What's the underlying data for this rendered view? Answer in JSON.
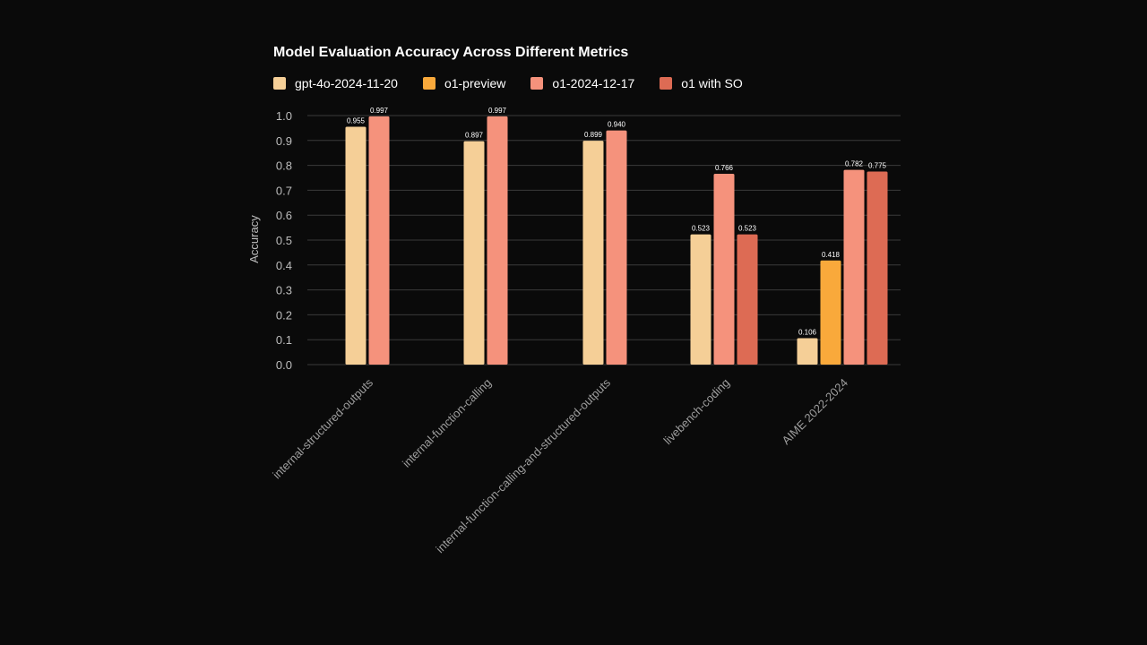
{
  "chart_data": {
    "type": "bar",
    "title": "Model Evaluation Accuracy Across Different Metrics",
    "xlabel": "",
    "ylabel": "Accuracy",
    "ylim": [
      0,
      1.0
    ],
    "yticks": [
      "0.0",
      "0.1",
      "0.2",
      "0.3",
      "0.4",
      "0.5",
      "0.6",
      "0.7",
      "0.8",
      "0.9",
      "1.0"
    ],
    "grid": true,
    "legend_position": "top-left",
    "categories": [
      "internal-structured-outputs",
      "internal-function-calling",
      "internal-function-calling-and-structured-outputs",
      "livebench-coding",
      "AIME 2022-2024"
    ],
    "series": [
      {
        "name": "gpt-4o-2024-11-20",
        "color": "#f5cf97",
        "values": [
          0.955,
          0.897,
          0.899,
          0.523,
          0.106
        ],
        "labels": [
          "0.955",
          "0.897",
          "0.899",
          "0.523",
          "0.106"
        ]
      },
      {
        "name": "o1-preview",
        "color": "#f9a93b",
        "values": [
          null,
          null,
          null,
          null,
          0.418
        ],
        "labels": [
          null,
          null,
          null,
          null,
          "0.418"
        ]
      },
      {
        "name": "o1-2024-12-17",
        "color": "#f5927c",
        "values": [
          0.997,
          0.997,
          0.94,
          0.766,
          0.782
        ],
        "labels": [
          "0.997",
          "0.997",
          "0.940",
          "0.766",
          "0.782"
        ]
      },
      {
        "name": "o1 with SO",
        "color": "#dd6b54",
        "values": [
          null,
          null,
          null,
          0.523,
          0.775
        ],
        "labels": [
          null,
          null,
          null,
          "0.523",
          "0.775"
        ]
      }
    ]
  }
}
